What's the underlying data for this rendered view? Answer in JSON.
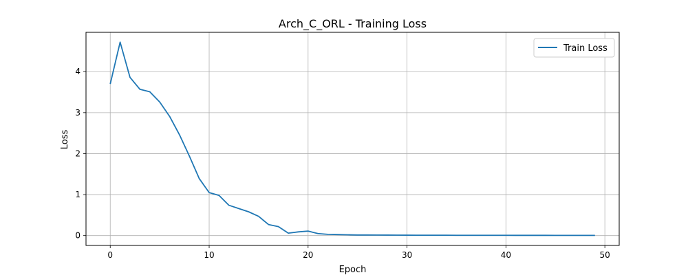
{
  "chart_data": {
    "type": "line",
    "title": "Arch_C_ORL - Training Loss",
    "xlabel": "Epoch",
    "ylabel": "Loss",
    "xlim": [
      -2.45,
      51.45
    ],
    "ylim": [
      -0.24,
      4.96
    ],
    "x_ticks": [
      0,
      10,
      20,
      30,
      40,
      50
    ],
    "y_ticks": [
      0,
      1,
      2,
      3,
      4
    ],
    "grid": true,
    "legend_position": "top-right",
    "series": [
      {
        "name": "Train Loss",
        "color": "#1f77b4",
        "x": [
          0,
          1,
          2,
          3,
          4,
          5,
          6,
          7,
          8,
          9,
          10,
          11,
          12,
          13,
          14,
          15,
          16,
          17,
          18,
          19,
          20,
          21,
          22,
          23,
          24,
          25,
          26,
          27,
          28,
          29,
          30,
          31,
          32,
          33,
          34,
          35,
          36,
          37,
          38,
          39,
          40,
          41,
          42,
          43,
          44,
          45,
          46,
          47,
          48,
          49
        ],
        "y": [
          3.7,
          4.72,
          3.86,
          3.57,
          3.51,
          3.26,
          2.91,
          2.46,
          1.94,
          1.39,
          1.05,
          0.98,
          0.74,
          0.66,
          0.58,
          0.47,
          0.27,
          0.22,
          0.06,
          0.09,
          0.11,
          0.05,
          0.03,
          0.025,
          0.02,
          0.015,
          0.015,
          0.014,
          0.013,
          0.012,
          0.011,
          0.01,
          0.01,
          0.009,
          0.009,
          0.008,
          0.008,
          0.008,
          0.007,
          0.007,
          0.007,
          0.006,
          0.006,
          0.006,
          0.006,
          0.005,
          0.005,
          0.005,
          0.005,
          0.005
        ]
      }
    ]
  }
}
